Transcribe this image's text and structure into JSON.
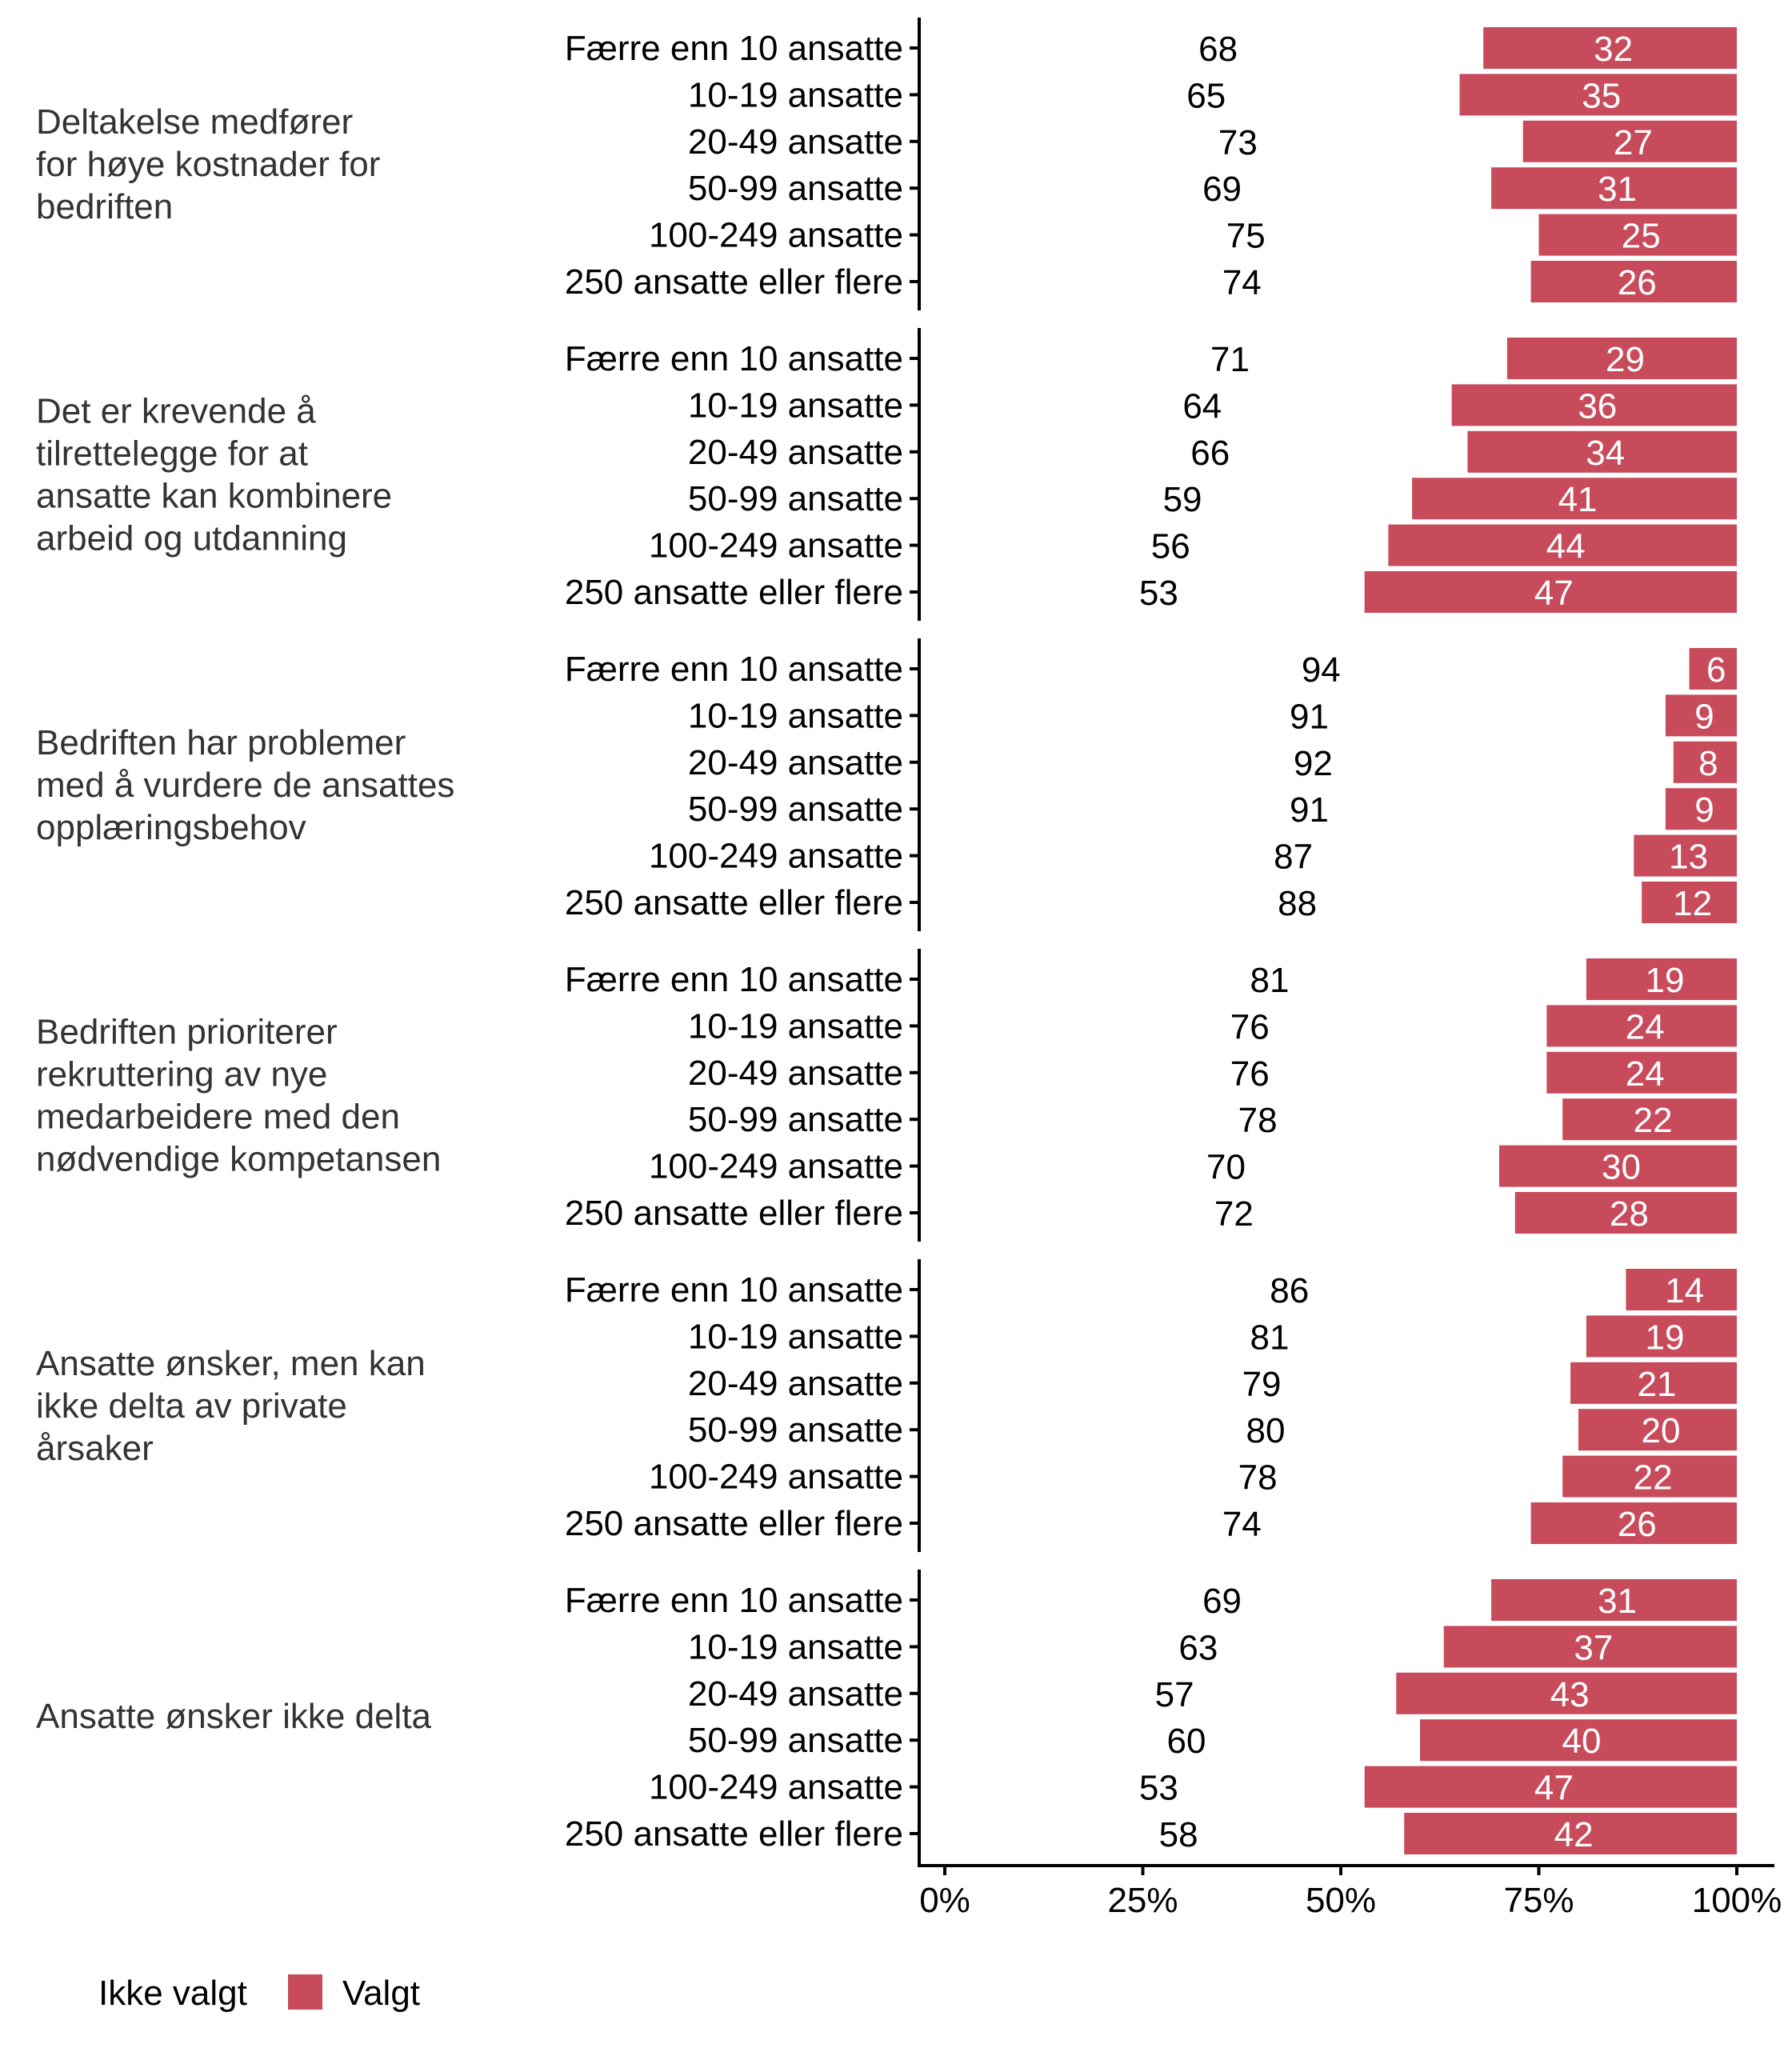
{
  "chart_data": {
    "type": "bar",
    "orientation": "horizontal",
    "stacked": true,
    "xlim": [
      0,
      100
    ],
    "x_ticks": [
      "0%",
      "25%",
      "50%",
      "75%",
      "100%"
    ],
    "xlabel": "",
    "ylabel": "",
    "categories": [
      "Færre enn 10 ansatte",
      "10-19 ansatte",
      "20-49 ansatte",
      "50-99 ansatte",
      "100-249 ansatte",
      "250 ansatte eller flere"
    ],
    "facets": [
      {
        "label": [
          "Deltakelse medfører",
          "for høye kostnader for",
          "bedriften"
        ],
        "series": [
          {
            "name": "Ikke valgt",
            "values": [
              68,
              65,
              73,
              69,
              75,
              74
            ]
          },
          {
            "name": "Valgt",
            "values": [
              32,
              35,
              27,
              31,
              25,
              26
            ]
          }
        ]
      },
      {
        "label": [
          "Det er krevende å",
          "tilrettelegge for at",
          "ansatte kan kombinere",
          "arbeid og utdanning"
        ],
        "series": [
          {
            "name": "Ikke valgt",
            "values": [
              71,
              64,
              66,
              59,
              56,
              53
            ]
          },
          {
            "name": "Valgt",
            "values": [
              29,
              36,
              34,
              41,
              44,
              47
            ]
          }
        ]
      },
      {
        "label": [
          "Bedriften har problemer",
          "med å vurdere de ansattes",
          "opplæringsbehov"
        ],
        "series": [
          {
            "name": "Ikke valgt",
            "values": [
              94,
              91,
              92,
              91,
              87,
              88
            ]
          },
          {
            "name": "Valgt",
            "values": [
              6,
              9,
              8,
              9,
              13,
              12
            ]
          }
        ]
      },
      {
        "label": [
          "Bedriften prioriterer",
          "rekruttering av nye",
          "medarbeidere med den",
          "nødvendige kompetansen"
        ],
        "series": [
          {
            "name": "Ikke valgt",
            "values": [
              81,
              76,
              76,
              78,
              70,
              72
            ]
          },
          {
            "name": "Valgt",
            "values": [
              19,
              24,
              24,
              22,
              30,
              28
            ]
          }
        ]
      },
      {
        "label": [
          "Ansatte ønsker, men kan",
          "ikke delta av private",
          "årsaker"
        ],
        "series": [
          {
            "name": "Ikke valgt",
            "values": [
              86,
              81,
              79,
              80,
              78,
              74
            ]
          },
          {
            "name": "Valgt",
            "values": [
              14,
              19,
              21,
              20,
              22,
              26
            ]
          }
        ]
      },
      {
        "label": [
          "Ansatte ønsker ikke delta"
        ],
        "series": [
          {
            "name": "Ikke valgt",
            "values": [
              69,
              63,
              57,
              60,
              53,
              58
            ]
          },
          {
            "name": "Valgt",
            "values": [
              31,
              37,
              43,
              40,
              47,
              42
            ]
          }
        ]
      }
    ],
    "legend": {
      "position": "bottom-left",
      "items": [
        {
          "name": "Ikke valgt",
          "color": "#FFFFFF"
        },
        {
          "name": "Valgt",
          "color": "#C84B5C"
        }
      ]
    },
    "colors": {
      "valgt": "#C84B5C",
      "ikke_valgt": "#FFFFFF",
      "valgt_label": "#FFFFFF",
      "ikke_valgt_label": "#000000"
    }
  }
}
